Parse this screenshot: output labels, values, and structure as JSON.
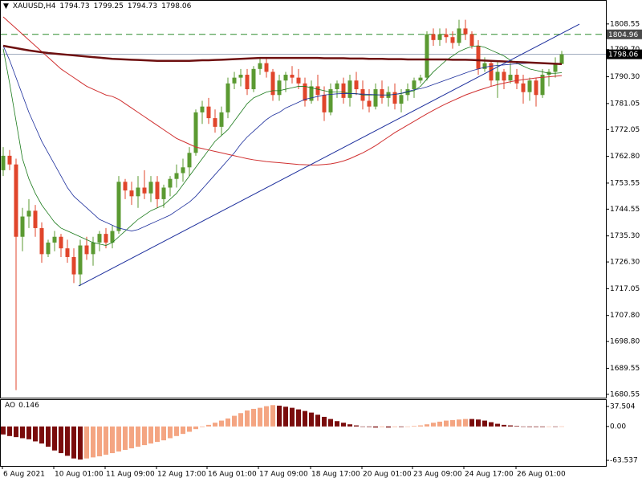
{
  "chart_data": {
    "type": "candlestick",
    "title": "XAUUSD,H4",
    "header_ohlc": [
      1794.73,
      1799.25,
      1794.73,
      1798.06
    ],
    "time_labels": [
      "6 Aug 2021",
      "10 Aug 01:00",
      "11 Aug 09:00",
      "12 Aug 17:00",
      "16 Aug 01:00",
      "17 Aug 09:00",
      "18 Aug 17:00",
      "20 Aug 01:00",
      "23 Aug 09:00",
      "24 Aug 17:00",
      "26 Aug 01:00"
    ],
    "ylim": [
      1679.4,
      1816.0
    ],
    "yticks": [
      1808.55,
      {
        "value": 1799.7,
        "label": "1799.70"
      },
      {
        "value": 1790.3,
        "label": "1790.30"
      },
      1781.05,
      1772.05,
      {
        "value": 1762.8,
        "label": "1762.80"
      },
      1753.55,
      1744.55,
      {
        "value": 1735.3,
        "label": "1735.30"
      },
      {
        "value": 1726.3,
        "label": "1726.30"
      },
      1717.05,
      {
        "value": 1707.8,
        "label": "1707.80"
      },
      {
        "value": 1698.8,
        "label": "1698.80"
      },
      1689.55,
      1680.55
    ],
    "up_color": "#5b9a32",
    "down_color": "#e0452b",
    "candles": {
      "open": [
        1758,
        1763,
        1760,
        1735,
        1742,
        1744,
        1738,
        1729,
        1733,
        1735,
        1731,
        1728,
        1722,
        1732,
        1729,
        1733,
        1736,
        1733,
        1737,
        1754,
        1751,
        1749,
        1752,
        1750,
        1754,
        1748,
        1752,
        1755,
        1757,
        1759,
        1764,
        1778,
        1780,
        1776,
        1773,
        1778,
        1788,
        1790,
        1791,
        1786,
        1793,
        1795,
        1792,
        1784,
        1789,
        1791,
        1790,
        1788,
        1782,
        1787,
        1784,
        1778,
        1786,
        1788,
        1783,
        1789,
        1786,
        1782,
        1780,
        1786,
        1783,
        1785,
        1781,
        1784,
        1786,
        1789,
        1790,
        1805,
        1803,
        1805,
        1804,
        1802,
        1807,
        1805,
        1801,
        1793,
        1795,
        1789,
        1792,
        1789,
        1791,
        1788,
        1785,
        1789,
        1784,
        1791,
        1792,
        1794.73
      ],
      "high": [
        1766,
        1765,
        1762,
        1745,
        1748,
        1746,
        1740,
        1734,
        1737,
        1736,
        1734,
        1731,
        1734,
        1735,
        1735,
        1737,
        1738,
        1739,
        1756,
        1755,
        1754,
        1756,
        1758,
        1756,
        1756,
        1753,
        1756,
        1760,
        1762,
        1766,
        1779,
        1782,
        1783,
        1779,
        1780,
        1790,
        1792,
        1793,
        1793,
        1794,
        1797,
        1797,
        1793,
        1791,
        1792,
        1794,
        1793,
        1790,
        1789,
        1791,
        1787,
        1788,
        1789,
        1790,
        1791,
        1792,
        1789,
        1786,
        1788,
        1789,
        1787,
        1788,
        1786,
        1788,
        1790,
        1791,
        1806,
        1807,
        1807,
        1807,
        1806,
        1810,
        1810,
        1806,
        1803,
        1797,
        1796,
        1796,
        1793,
        1795,
        1793,
        1791,
        1790,
        1790,
        1793,
        1793,
        1797,
        1799.25
      ],
      "low": [
        1756,
        1758,
        1682,
        1730,
        1738,
        1735,
        1726,
        1728,
        1730,
        1728,
        1726,
        1719,
        1718,
        1727,
        1725,
        1730,
        1731,
        1731,
        1736,
        1748,
        1746,
        1745,
        1748,
        1747,
        1745,
        1745,
        1749,
        1752,
        1754,
        1756,
        1763,
        1774,
        1774,
        1771,
        1770,
        1776,
        1786,
        1787,
        1784,
        1785,
        1791,
        1790,
        1782,
        1782,
        1785,
        1788,
        1786,
        1780,
        1781,
        1782,
        1775,
        1777,
        1783,
        1781,
        1780,
        1784,
        1779,
        1778,
        1779,
        1781,
        1780,
        1779,
        1778,
        1782,
        1783,
        1788,
        1789,
        1801,
        1801,
        1802,
        1800,
        1801,
        1803,
        1800,
        1791,
        1792,
        1787,
        1783,
        1786,
        1788,
        1786,
        1781,
        1782,
        1780,
        1783,
        1787,
        1790,
        1794.73
      ],
      "close": [
        1763,
        1760,
        1735,
        1742,
        1744,
        1738,
        1729,
        1733,
        1735,
        1731,
        1728,
        1722,
        1732,
        1729,
        1733,
        1736,
        1733,
        1737,
        1754,
        1751,
        1749,
        1752,
        1750,
        1754,
        1748,
        1752,
        1755,
        1757,
        1759,
        1764,
        1778,
        1780,
        1776,
        1773,
        1778,
        1788,
        1790,
        1791,
        1786,
        1793,
        1795,
        1792,
        1784,
        1789,
        1791,
        1790,
        1788,
        1782,
        1787,
        1784,
        1778,
        1786,
        1788,
        1783,
        1789,
        1786,
        1782,
        1780,
        1786,
        1783,
        1785,
        1781,
        1784,
        1786,
        1789,
        1790,
        1805,
        1803,
        1805,
        1804,
        1802,
        1807,
        1805,
        1801,
        1793,
        1795,
        1789,
        1792,
        1789,
        1791,
        1788,
        1785,
        1789,
        1784,
        1791,
        1792,
        1795,
        1798.06
      ]
    },
    "moving_averages": [
      {
        "color": "#1a7a1a",
        "width": 0.8,
        "values": [
          1800,
          1788,
          1775,
          1762,
          1755,
          1750,
          1746,
          1743,
          1740,
          1738,
          1737,
          1736,
          1735,
          1734,
          1733,
          1732.5,
          1732,
          1733,
          1735,
          1737,
          1739,
          1741,
          1742.5,
          1744,
          1745,
          1746,
          1748,
          1750,
          1753,
          1756,
          1759,
          1762,
          1765,
          1768,
          1770,
          1772,
          1775,
          1778,
          1781,
          1783,
          1784,
          1785,
          1785.5,
          1785.5,
          1786,
          1786.5,
          1787,
          1787,
          1786.5,
          1786,
          1785.5,
          1785,
          1785,
          1785,
          1784.5,
          1784.5,
          1784,
          1784,
          1784,
          1784,
          1784,
          1784.2,
          1784.5,
          1785,
          1785.5,
          1787,
          1789.5,
          1792,
          1794,
          1796,
          1797.5,
          1799,
          1800,
          1800.8,
          1801,
          1800.5,
          1799.5,
          1798.5,
          1797.5,
          1796,
          1795,
          1794,
          1793,
          1792.5,
          1792,
          1791.5,
          1791.5,
          1791.7
        ]
      },
      {
        "color": "#1c2e9c",
        "width": 0.8,
        "values": [
          1801,
          1796,
          1790,
          1784,
          1778,
          1773,
          1768,
          1764,
          1760,
          1756,
          1752,
          1749,
          1747,
          1745,
          1743,
          1741,
          1740,
          1739,
          1738,
          1737.5,
          1737,
          1737.5,
          1738.5,
          1739.5,
          1740.5,
          1741.5,
          1742.5,
          1744,
          1745.5,
          1747,
          1749,
          1751.5,
          1754,
          1756.5,
          1759,
          1761.5,
          1764,
          1767,
          1769.5,
          1771.5,
          1773.5,
          1775.5,
          1777,
          1778,
          1779.5,
          1780.5,
          1781.5,
          1782.5,
          1783,
          1783.5,
          1784,
          1784.2,
          1784.4,
          1784.5,
          1784.5,
          1784.4,
          1784.3,
          1784.2,
          1784.1,
          1784,
          1784,
          1784.2,
          1784.6,
          1785.2,
          1785.8,
          1786.2,
          1786.8,
          1787.6,
          1788.4,
          1789.2,
          1790,
          1790.8,
          1791.6,
          1792.4,
          1793,
          1793.6,
          1794,
          1794.2,
          1794.4,
          1794.6,
          1794.8,
          1794.9,
          1795,
          1795,
          1795,
          1794.9,
          1794.8,
          1794.6
        ]
      },
      {
        "color": "#d03030",
        "width": 1,
        "values": [
          1811,
          1809,
          1807,
          1805,
          1803,
          1801,
          1799,
          1797,
          1795,
          1793,
          1791.5,
          1790,
          1788.5,
          1787,
          1786,
          1785,
          1784,
          1783.5,
          1782.5,
          1781,
          1779.5,
          1778,
          1776.5,
          1775,
          1773.5,
          1772,
          1770.5,
          1769,
          1768,
          1767,
          1766,
          1765.5,
          1765,
          1764.5,
          1764,
          1763.5,
          1763,
          1762.5,
          1762,
          1761.6,
          1761.3,
          1761,
          1760.8,
          1760.6,
          1760.4,
          1760.2,
          1760,
          1759.9,
          1759.8,
          1759.8,
          1760,
          1760.2,
          1760.6,
          1761.2,
          1762,
          1763,
          1764,
          1765.2,
          1766.5,
          1768,
          1769.5,
          1771,
          1772.3,
          1773.6,
          1774.9,
          1776.2,
          1777.5,
          1778.7,
          1779.9,
          1781,
          1782,
          1783,
          1784,
          1784.8,
          1785.6,
          1786.3,
          1787,
          1787.6,
          1788.1,
          1788.6,
          1789,
          1789.3,
          1789.6,
          1789.9,
          1790.1,
          1790.3,
          1790.5,
          1790.7
        ]
      },
      {
        "color": "#6e1010",
        "width": 2.5,
        "values": [
          1801.0,
          1800.6,
          1800.2,
          1799.8,
          1799.4,
          1799.1,
          1798.8,
          1798.5,
          1798.3,
          1798.1,
          1797.9,
          1797.7,
          1797.5,
          1797.3,
          1797.1,
          1796.9,
          1796.7,
          1796.5,
          1796.4,
          1796.3,
          1796.2,
          1796.1,
          1796.0,
          1795.9,
          1795.8,
          1795.8,
          1795.8,
          1795.8,
          1795.8,
          1795.8,
          1795.9,
          1796.0,
          1796.0,
          1796.1,
          1796.2,
          1796.3,
          1796.4,
          1796.5,
          1796.6,
          1796.7,
          1796.8,
          1796.8,
          1796.8,
          1796.8,
          1796.8,
          1796.8,
          1796.8,
          1796.8,
          1796.8,
          1796.8,
          1796.7,
          1796.7,
          1796.7,
          1796.7,
          1796.6,
          1796.6,
          1796.6,
          1796.5,
          1796.5,
          1796.5,
          1796.4,
          1796.4,
          1796.4,
          1796.3,
          1796.3,
          1796.3,
          1796.3,
          1796.3,
          1796.3,
          1796.3,
          1796.2,
          1796.2,
          1796.2,
          1796.1,
          1796.0,
          1795.9,
          1795.8,
          1795.7,
          1795.6,
          1795.5,
          1795.4,
          1795.3,
          1795.2,
          1795.1,
          1795.0,
          1794.9,
          1794.8,
          1794.7
        ]
      }
    ],
    "trendline": {
      "color": "#1c2e9c",
      "values": [
        1718,
        1808.5
      ]
    },
    "level": {
      "value": 1804.96,
      "color": "#2e8b2e"
    },
    "current_price": {
      "value": 1798.06,
      "color": "#8090a8"
    },
    "ao": {
      "name": "AO",
      "last": 0.146,
      "ylim": [
        -74,
        51
      ],
      "yticks": [
        37.504,
        {
          "value": 0,
          "label": "0.00"
        },
        -63.537
      ],
      "up_color": "#f4a582",
      "down_color": "#7a0c0c",
      "values": [
        -15,
        -18,
        -20,
        -22,
        -24,
        -28,
        -32,
        -38,
        -45,
        -50,
        -55,
        -60,
        -62,
        -60,
        -58,
        -56,
        -53,
        -50,
        -47,
        -44,
        -41,
        -38,
        -35,
        -32,
        -29,
        -26,
        -22,
        -18,
        -14,
        -10,
        -5,
        -1,
        3,
        7,
        11,
        15,
        20,
        25,
        30,
        33,
        35,
        38,
        40,
        39,
        37,
        35,
        32,
        29,
        26,
        22,
        18,
        14,
        10,
        7,
        4,
        2,
        0,
        -1,
        -2,
        -1,
        -2,
        -1,
        -1,
        0,
        1,
        2,
        4,
        7,
        9,
        11,
        12,
        13,
        14,
        14,
        13,
        11,
        8,
        5,
        3,
        2,
        1,
        0,
        -1,
        -1,
        -1,
        0,
        -0.5,
        0.146
      ]
    }
  }
}
